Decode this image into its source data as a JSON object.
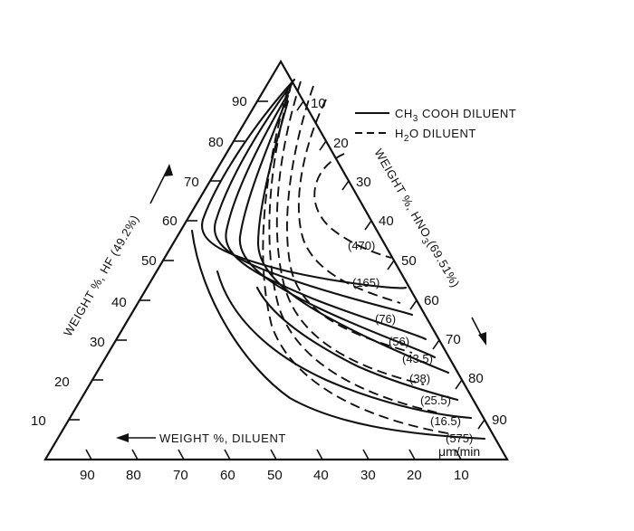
{
  "chart_data": {
    "type": "ternary",
    "axes": {
      "left": {
        "label": "WEIGHT %, HF (49.2%)",
        "ticks": [
          "10",
          "20",
          "30",
          "40",
          "50",
          "60",
          "70",
          "80",
          "90"
        ]
      },
      "right": {
        "label": "WEIGHT %, HNO3 (69.51%)",
        "ticks": [
          "10",
          "20",
          "30",
          "40",
          "50",
          "60",
          "70",
          "80",
          "90"
        ]
      },
      "bottom": {
        "label": "WEIGHT %, DILUENT",
        "ticks": [
          "90",
          "80",
          "70",
          "60",
          "50",
          "40",
          "30",
          "20",
          "10"
        ]
      }
    },
    "legend": {
      "placement": "top-right",
      "entries": [
        {
          "label": "CH3 COOH DILUENT",
          "style": "solid"
        },
        {
          "label": "H2O DILUENT",
          "style": "dashed"
        }
      ]
    },
    "unit": "μm/min",
    "series": [
      {
        "diluent": "CH3COOH",
        "style": "solid",
        "rate": "(470)",
        "points": [
          [
            19,
            44
          ],
          [
            12,
            48
          ],
          [
            12,
            58
          ],
          [
            21,
            64
          ],
          [
            36,
            60
          ],
          [
            48,
            49
          ],
          [
            53,
            46
          ]
        ]
      },
      {
        "diluent": "CH3COOH",
        "style": "solid",
        "rate": "(165)",
        "points": [
          [
            30,
            43
          ],
          [
            22,
            48
          ],
          [
            19,
            60
          ],
          [
            28,
            67
          ],
          [
            40,
            57
          ],
          [
            47,
            49
          ],
          [
            51,
            46
          ]
        ]
      },
      {
        "diluent": "CH3COOH",
        "style": "solid",
        "rate": "(76)",
        "points": [
          [
            45,
            36
          ],
          [
            36,
            42
          ],
          [
            30,
            54
          ],
          [
            33,
            66
          ],
          [
            46,
            56
          ],
          [
            54,
            45
          ],
          [
            59,
            40
          ]
        ]
      },
      {
        "diluent": "CH3COOH",
        "style": "solid",
        "rate": "(56)",
        "points": [
          [
            60,
            28
          ],
          [
            55,
            32
          ],
          [
            43,
            43
          ],
          [
            34,
            56
          ],
          [
            46,
            55
          ],
          [
            58,
            40
          ],
          [
            64,
            35
          ]
        ]
      },
      {
        "diluent": "CH3COOH",
        "style": "solid",
        "rate": "(43.5)",
        "points": [
          [
            70,
            21
          ],
          [
            64,
            25
          ],
          [
            52,
            34
          ],
          [
            40,
            46
          ],
          [
            45,
            53
          ],
          [
            62,
            37
          ],
          [
            68,
            31
          ]
        ]
      },
      {
        "diluent": "CH3COOH",
        "style": "solid",
        "rate": "(38)",
        "points": [
          [
            78,
            16
          ],
          [
            72,
            19
          ],
          [
            59,
            28
          ],
          [
            48,
            37
          ],
          [
            43,
            48
          ],
          [
            63,
            34
          ],
          [
            72,
            27
          ]
        ]
      },
      {
        "diluent": "CH3COOH",
        "style": "solid",
        "rate": "(25.5)",
        "points": [
          [
            84,
            11
          ],
          [
            80,
            13
          ],
          [
            68,
            19
          ],
          [
            57,
            27
          ],
          [
            47,
            38
          ],
          [
            57,
            40
          ],
          [
            75,
            24
          ]
        ]
      },
      {
        "diluent": "CH3COOH",
        "style": "solid",
        "rate": "(16.5)",
        "points": [
          [
            88,
            9
          ],
          [
            84,
            10
          ],
          [
            78,
            11
          ],
          [
            67,
            16
          ],
          [
            56,
            25
          ],
          [
            55,
            41
          ],
          [
            79,
            20
          ]
        ]
      },
      {
        "diluent": "H2O",
        "style": "dashed",
        "rate": "(575)",
        "points": [
          [
            2,
            62
          ],
          [
            14,
            39
          ],
          [
            34,
            24
          ],
          [
            54,
            14
          ],
          [
            72,
            8
          ],
          [
            85,
            4
          ],
          [
            90,
            3
          ]
        ]
      }
    ]
  },
  "labels": {
    "legend_solid_main": "CH",
    "legend_solid_sub": "3",
    "legend_solid_rest": " COOH DILUENT",
    "legend_dashed_main": "H",
    "legend_dashed_sub": "2",
    "legend_dashed_rest": "O DILUENT",
    "hf_axis": "WEIGHT %, HF (49.2%)",
    "hno3_axis_pre": "WEIGHT %, HNO",
    "hno3_axis_sub": "3",
    "hno3_axis_post": "(69.51%)",
    "diluent_axis": "WEIGHT %, DILUENT",
    "unit": "μm/min"
  }
}
